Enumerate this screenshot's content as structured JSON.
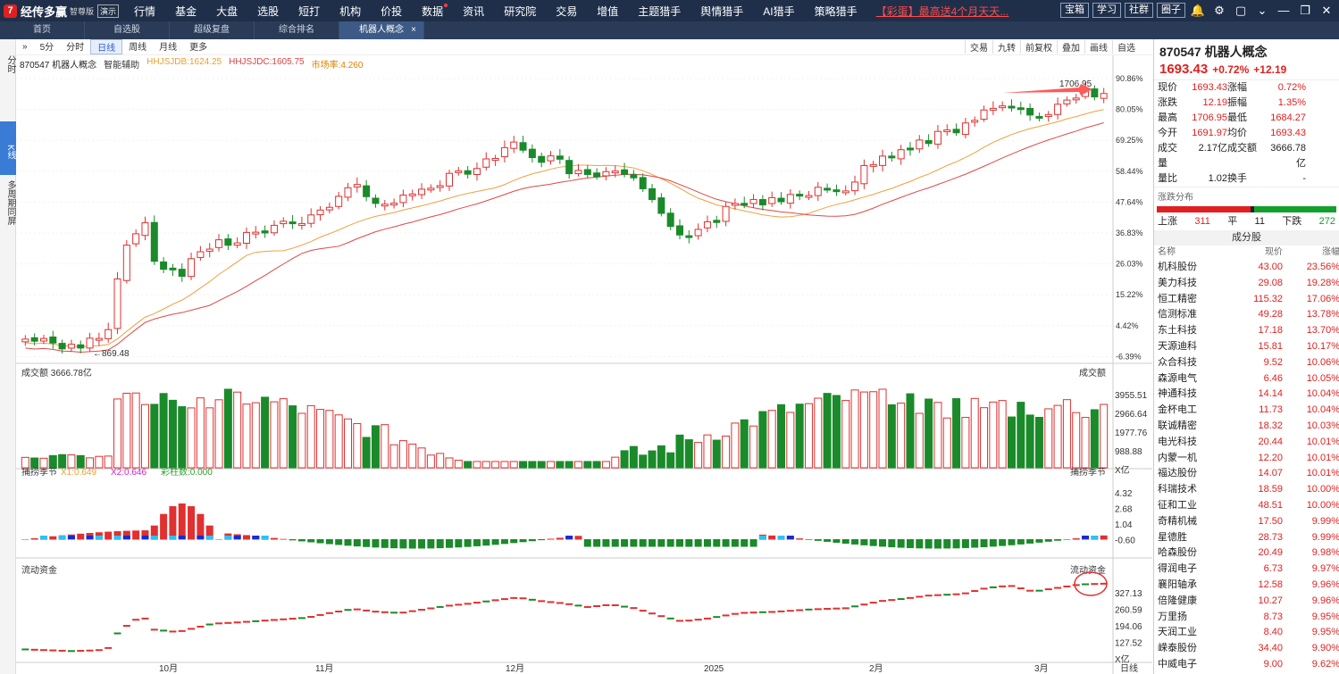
{
  "app": {
    "name": "经传多赢",
    "edition": "智尊版",
    "badge": "演示"
  },
  "menu": [
    "行情",
    "基金",
    "大盘",
    "选股",
    "短打",
    "机构",
    "价投",
    "数据",
    "资讯",
    "研究院",
    "交易",
    "增值",
    "主题猎手",
    "舆情猎手",
    "AI猎手",
    "策略猎手"
  ],
  "promo": "【彩蛋】最高送4个月天天...",
  "top_buttons": [
    "宝箱",
    "学习",
    "社群",
    "圈子"
  ],
  "top_icons": [
    "bell-icon",
    "gear-icon",
    "window-icon",
    "chevron-down-icon",
    "minimize-icon",
    "restore-icon",
    "close-icon"
  ],
  "tabs": [
    {
      "label": "首页"
    },
    {
      "label": "自选股"
    },
    {
      "label": "超级复盘"
    },
    {
      "label": "综合排名"
    },
    {
      "label": "机器人概念"
    }
  ],
  "left_rail": [
    "分时",
    "K线",
    "多周期同屏"
  ],
  "periods": [
    "5分",
    "分时",
    "日线",
    "周线",
    "月线",
    "更多"
  ],
  "chart_right_tools": [
    "交易",
    "九转",
    "前复权",
    "叠加",
    "画线",
    "自选"
  ],
  "info": {
    "code_name": "870547 机器人概念",
    "smart": "智能辅助",
    "ma1": "HHJSJDB:1624.25",
    "ma2": "HHJSJDC:1605.75",
    "volatility": "市场率:4.260"
  },
  "price_axis": [
    "90.86%",
    "80.05%",
    "69.25%",
    "58.44%",
    "47.64%",
    "36.83%",
    "26.03%",
    "15.22%",
    "4.42%",
    "-6.39%"
  ],
  "annot": {
    "high": "1706.95",
    "low": "869.48"
  },
  "vol_panel": {
    "title": "成交额",
    "value": "3666.78亿",
    "axis": [
      "3955.51",
      "2966.64",
      "1977.76",
      "988.88",
      "X亿"
    ]
  },
  "macd_panel": {
    "title": "捕捞季节",
    "x1": "X1:0.649",
    "x2": "X2:0.646",
    "bars": "彩柱数:0.000",
    "axis": [
      "4.32",
      "2.68",
      "1.04",
      "-0.60"
    ]
  },
  "flow_panel": {
    "title": "流动资金",
    "axis": [
      "327.13",
      "260.59",
      "194.06",
      "127.52",
      "X亿"
    ]
  },
  "x_labels": [
    "10月",
    "11月",
    "12月",
    "2025",
    "2月",
    "3月"
  ],
  "corner_label": "日线",
  "quote": {
    "title": "870547 机器人概念",
    "price": "1693.43",
    "pct": "+0.72%",
    "chg": "+12.19",
    "rows": [
      [
        "现价",
        "1693.43",
        "涨幅",
        "0.72%"
      ],
      [
        "涨跌",
        "12.19",
        "振幅",
        "1.35%"
      ],
      [
        "最高",
        "1706.95",
        "最低",
        "1684.27"
      ],
      [
        "今开",
        "1691.97",
        "均价",
        "1693.43"
      ],
      [
        "成交量",
        "2.17亿",
        "成交额",
        "3666.78亿"
      ],
      [
        "量比",
        "1.02",
        "换手",
        "-"
      ]
    ]
  },
  "dist": {
    "title": "涨跌分布",
    "up_label": "上涨",
    "up": "311",
    "flat_label": "平",
    "flat": "11",
    "down_label": "下跌",
    "down": "272"
  },
  "constituents": {
    "title": "成分股",
    "cols": [
      "名称",
      "现价",
      "涨幅"
    ],
    "rows": [
      [
        "机科股份",
        "43.00",
        "23.56%"
      ],
      [
        "美力科技",
        "29.08",
        "19.28%"
      ],
      [
        "恒工精密",
        "115.32",
        "17.06%"
      ],
      [
        "信测标准",
        "49.28",
        "13.78%"
      ],
      [
        "东土科技",
        "17.18",
        "13.70%"
      ],
      [
        "天源迪科",
        "15.81",
        "10.17%"
      ],
      [
        "众合科技",
        "9.52",
        "10.06%"
      ],
      [
        "森源电气",
        "6.46",
        "10.05%"
      ],
      [
        "神通科技",
        "14.14",
        "10.04%"
      ],
      [
        "金杯电工",
        "11.73",
        "10.04%"
      ],
      [
        "联诚精密",
        "18.32",
        "10.03%"
      ],
      [
        "电光科技",
        "20.44",
        "10.01%"
      ],
      [
        "内蒙一机",
        "12.20",
        "10.01%"
      ],
      [
        "福达股份",
        "14.07",
        "10.01%"
      ],
      [
        "科瑞技术",
        "18.59",
        "10.00%"
      ],
      [
        "征和工业",
        "48.51",
        "10.00%"
      ],
      [
        "奇精机械",
        "17.50",
        "9.99%"
      ],
      [
        "星德胜",
        "28.73",
        "9.99%"
      ],
      [
        "哈森股份",
        "20.49",
        "9.98%"
      ],
      [
        "得润电子",
        "6.73",
        "9.97%"
      ],
      [
        "襄阳轴承",
        "12.58",
        "9.96%"
      ],
      [
        "倍隆健康",
        "10.27",
        "9.96%"
      ],
      [
        "万里扬",
        "8.73",
        "9.95%"
      ],
      [
        "天润工业",
        "8.40",
        "9.95%"
      ],
      [
        "嵘泰股份",
        "34.40",
        "9.90%"
      ],
      [
        "中威电子",
        "9.00",
        "9.62%"
      ]
    ]
  }
}
